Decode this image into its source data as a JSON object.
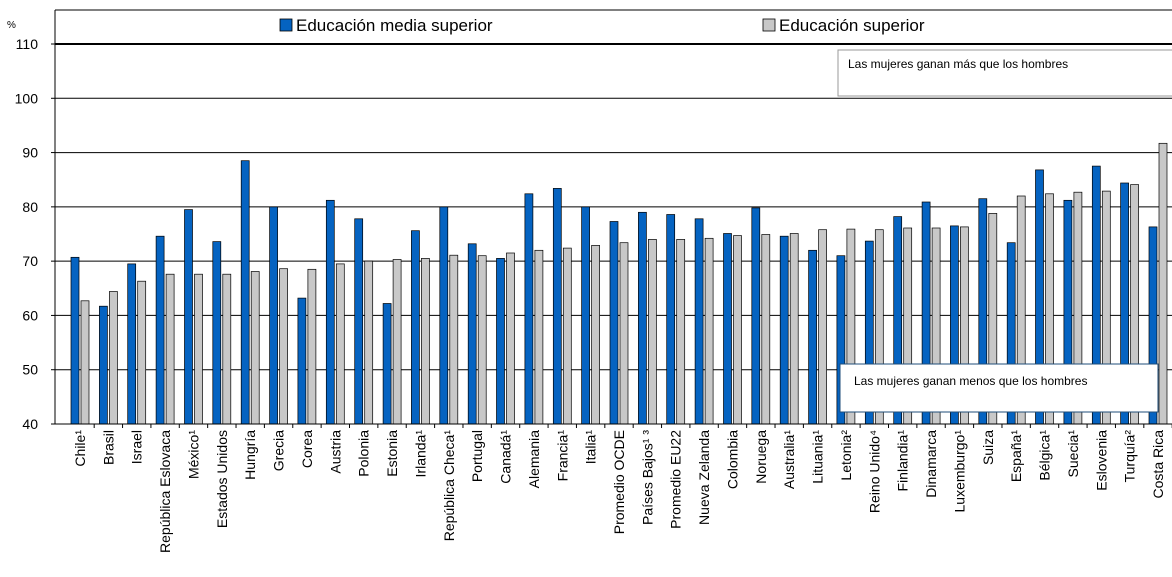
{
  "chart_data": {
    "type": "bar",
    "y_unit": "%",
    "ylim": [
      40,
      110
    ],
    "yticks": [
      40,
      50,
      60,
      70,
      80,
      90,
      100,
      110
    ],
    "legend_position": "top",
    "annotations": {
      "above": "Las mujeres ganan más que los hombres",
      "below": "Las mujeres ganan menos que los hombres"
    },
    "categories": [
      "Chile¹",
      "Brasil",
      "Israel",
      "República Eslovaca",
      "México¹",
      "Estados Unidos",
      "Hungría",
      "Grecia",
      "Corea",
      "Austria",
      "Polonia",
      "Estonia",
      "Irlanda¹",
      "República Checa¹",
      "Portugal",
      "Canadá¹",
      "Alemania",
      "Francia¹",
      "Italia¹",
      "Promedio OCDE",
      "Países Bajos¹ ³",
      "Promedio EU22",
      "Nueva Zelanda",
      "Colombia",
      "Noruega",
      "Australia¹",
      "Lituania¹",
      "Letonia²",
      "Reino Unido⁴",
      "Finlandia¹",
      "Dinamarca",
      "Luxemburgo¹",
      "Suiza",
      "España¹",
      "Bélgica¹",
      "Suecia¹",
      "Eslovenia",
      "Turquía²",
      "Costa Rica"
    ],
    "series": [
      {
        "name": "Educación media superior",
        "color": "#0563C1",
        "values": [
          70.7,
          61.7,
          69.5,
          74.6,
          79.5,
          73.6,
          88.5,
          80.0,
          63.2,
          81.2,
          77.8,
          62.2,
          75.6,
          80.0,
          73.2,
          70.5,
          82.4,
          83.4,
          80.0,
          77.3,
          79.0,
          78.6,
          77.8,
          75.1,
          79.8,
          74.6,
          72.0,
          71.0,
          73.7,
          78.2,
          80.9,
          76.5,
          81.5,
          73.4,
          86.8,
          81.2,
          87.5,
          84.4,
          76.3
        ]
      },
      {
        "name": "Educación superior",
        "color": "#C8C8C8",
        "values": [
          62.7,
          64.4,
          66.3,
          67.6,
          67.6,
          67.6,
          68.1,
          68.6,
          68.5,
          69.5,
          70.0,
          70.3,
          70.5,
          71.1,
          71.0,
          71.5,
          72.0,
          72.4,
          72.9,
          73.4,
          74.0,
          74.0,
          74.2,
          74.7,
          74.9,
          75.1,
          75.8,
          75.9,
          75.8,
          76.1,
          76.1,
          76.3,
          78.8,
          82.0,
          82.4,
          82.7,
          82.9,
          84.1,
          91.7
        ]
      }
    ]
  }
}
